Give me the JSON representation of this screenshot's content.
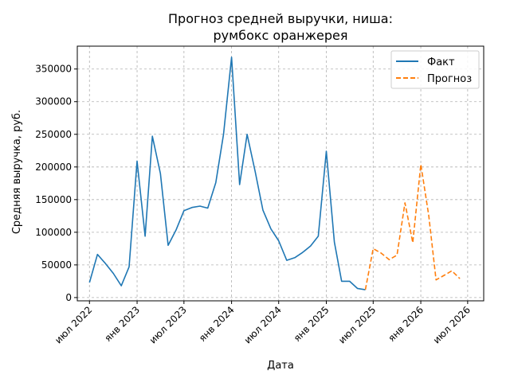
{
  "chart_data": {
    "type": "line",
    "title_lines": [
      "Прогноз средней выручки, ниша:",
      "румбокс оранжерея"
    ],
    "xlabel": "Дата",
    "ylabel": "Средняя выручка, руб.",
    "x_ticks": [
      "июл 2022",
      "янв 2023",
      "июл 2023",
      "янв 2024",
      "июл 2024",
      "янв 2025",
      "июл 2025",
      "янв 2026",
      "июл 2026"
    ],
    "y_ticks": [
      0,
      50000,
      100000,
      150000,
      200000,
      250000,
      300000,
      350000
    ],
    "ylim": [
      -5000,
      385000
    ],
    "xlim": [
      "2022-05-15",
      "2026-09-01"
    ],
    "grid": true,
    "legend_position": "top-right",
    "series": [
      {
        "name": "Факт",
        "color": "#1f77b4",
        "dash": "solid",
        "x": [
          "2022-07-01",
          "2022-08-01",
          "2022-09-01",
          "2022-10-01",
          "2022-11-01",
          "2022-12-01",
          "2023-01-01",
          "2023-02-01",
          "2023-03-01",
          "2023-04-01",
          "2023-05-01",
          "2023-06-01",
          "2023-07-01",
          "2023-08-01",
          "2023-09-01",
          "2023-10-01",
          "2023-11-01",
          "2023-12-01",
          "2024-01-01",
          "2024-02-01",
          "2024-03-01",
          "2024-04-01",
          "2024-05-01",
          "2024-06-01",
          "2024-07-01",
          "2024-08-01",
          "2024-09-01",
          "2024-10-01",
          "2024-11-01",
          "2024-12-01",
          "2025-01-01",
          "2025-02-01",
          "2025-03-01",
          "2025-04-01",
          "2025-05-01",
          "2025-06-01"
        ],
        "y": [
          23000,
          66000,
          52000,
          37000,
          18000,
          47000,
          209000,
          94000,
          247000,
          190000,
          80000,
          104000,
          133000,
          138000,
          140000,
          137000,
          176000,
          250000,
          368000,
          173000,
          250000,
          193000,
          134000,
          105000,
          87000,
          57000,
          61000,
          69000,
          79000,
          94000,
          224000,
          85000,
          25000,
          25000,
          14000,
          12000
        ]
      },
      {
        "name": "Прогноз",
        "color": "#ff7f0e",
        "dash": "dashed",
        "x": [
          "2025-06-01",
          "2025-07-01",
          "2025-08-01",
          "2025-09-01",
          "2025-10-01",
          "2025-11-01",
          "2025-12-01",
          "2026-01-01",
          "2026-02-01",
          "2026-03-01",
          "2026-04-01",
          "2026-05-01",
          "2026-06-01"
        ],
        "y": [
          12000,
          75000,
          68000,
          58000,
          65000,
          145000,
          84000,
          204000,
          125000,
          27000,
          34000,
          41000,
          29000
        ]
      }
    ]
  }
}
